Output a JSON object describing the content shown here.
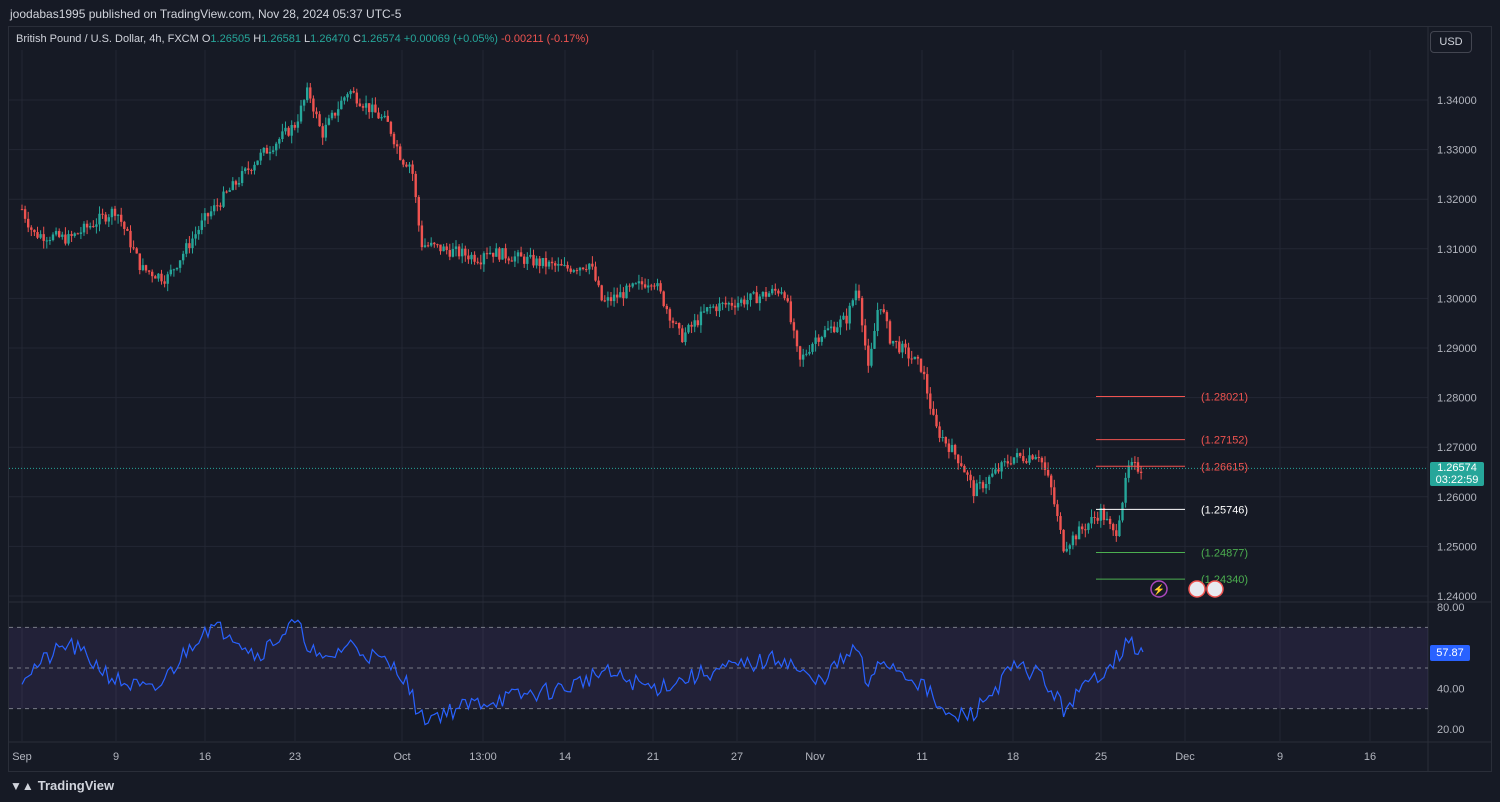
{
  "header": {
    "publisher": "joodabas1995 published on TradingView.com, Nov 28, 2024 05:37 UTC-5"
  },
  "legend": {
    "symbol": "British Pound / U.S. Dollar, 4h, FXCM",
    "o_label": "O",
    "o": "1.26505",
    "h_label": "H",
    "h": "1.26581",
    "l_label": "L",
    "l": "1.26470",
    "c_label": "C",
    "c": "1.26574",
    "change": "+0.00069 (+0.05%)",
    "change2": "-0.00211 (-0.17%)"
  },
  "currency_button": "USD",
  "last_price": {
    "value": "1.26574",
    "countdown": "03:22:59",
    "color": "#26a69a"
  },
  "rsi_value": "57.87",
  "footer": {
    "brand": "TradingView"
  },
  "colors": {
    "up": "#26a69a",
    "down": "#ef5350",
    "rsi": "#2962ff",
    "background": "#161a25"
  },
  "chart_data": [
    {
      "type": "candlestick",
      "title": "",
      "y_axis_ticks": [
        "1.34000",
        "1.33000",
        "1.32000",
        "1.31000",
        "1.30000",
        "1.29000",
        "1.28000",
        "1.27000",
        "1.26000",
        "1.25000",
        "1.24000"
      ],
      "x_axis_ticks": [
        "Sep",
        "9",
        "16",
        "23",
        "Oct",
        "13:00",
        "14",
        "21",
        "27",
        "Nov",
        "11",
        "18",
        "25",
        "Dec",
        "9",
        "16"
      ],
      "ylim": [
        1.24,
        1.345
      ],
      "price_path": [
        [
          "Sep",
          1.318
        ],
        [
          "Sep 2",
          1.313
        ],
        [
          "Sep 5",
          1.312
        ],
        [
          "Sep 9",
          1.318
        ],
        [
          "Sep 11",
          1.306
        ],
        [
          "Sep 13",
          1.304
        ],
        [
          "Sep 16",
          1.316
        ],
        [
          "Sep 18",
          1.322
        ],
        [
          "Sep 20",
          1.328
        ],
        [
          "Sep 23",
          1.335
        ],
        [
          "Sep 24",
          1.342
        ],
        [
          "Sep 25",
          1.333
        ],
        [
          "Sep 27",
          1.342
        ],
        [
          "Sep 30",
          1.335
        ],
        [
          "Oct 1",
          1.328
        ],
        [
          "Oct 2",
          1.327
        ],
        [
          "Oct 3",
          1.311
        ],
        [
          "13:00",
          1.308
        ],
        [
          "Oct 9",
          1.31
        ],
        [
          "Oct 14",
          1.306
        ],
        [
          "Oct 16",
          1.307
        ],
        [
          "Oct 17",
          1.299
        ],
        [
          "Oct 21",
          1.304
        ],
        [
          "Oct 23",
          1.292
        ],
        [
          "Oct 25",
          1.298
        ],
        [
          "Oct 28",
          1.3
        ],
        [
          "Oct 30",
          1.302
        ],
        [
          "Oct 31",
          1.287
        ],
        [
          "Nov 1",
          1.292
        ],
        [
          "Nov 4",
          1.296
        ],
        [
          "Nov 5",
          1.303
        ],
        [
          "Nov 6",
          1.285
        ],
        [
          "Nov 7",
          1.3
        ],
        [
          "Nov 8",
          1.292
        ],
        [
          "Nov 11",
          1.286
        ],
        [
          "Nov 12",
          1.274
        ],
        [
          "Nov 14",
          1.267
        ],
        [
          "Nov 15",
          1.261
        ],
        [
          "Nov 18",
          1.268
        ],
        [
          "Nov 19",
          1.268
        ],
        [
          "Nov 20",
          1.269
        ],
        [
          "Nov 21",
          1.262
        ],
        [
          "Nov 22",
          1.25
        ],
        [
          "Nov 25",
          1.257
        ],
        [
          "Nov 26",
          1.252
        ],
        [
          "Nov 27",
          1.266
        ],
        [
          "Nov 28",
          1.26574
        ]
      ],
      "levels": [
        {
          "label": "(1.28021)",
          "value": 1.28021,
          "color": "#ef5350"
        },
        {
          "label": "(1.27152)",
          "value": 1.27152,
          "color": "#ef5350"
        },
        {
          "label": "(1.26615)",
          "value": 1.26615,
          "color": "#ef5350"
        },
        {
          "label": "(1.25746)",
          "value": 1.25746,
          "color": "#ffffff"
        },
        {
          "label": "(1.24877)",
          "value": 1.24877,
          "color": "#4caf50"
        },
        {
          "label": "(1.24340)",
          "value": 1.2434,
          "color": "#4caf50"
        }
      ]
    },
    {
      "type": "line",
      "title": "",
      "series_color": "#2962ff",
      "y_axis_ticks": [
        "80.00",
        "40.00",
        "20.00"
      ],
      "ylim": [
        20,
        80
      ],
      "bands": [
        70,
        50,
        30
      ],
      "rsi_path": [
        [
          "Sep",
          46
        ],
        [
          "Sep 5",
          62
        ],
        [
          "Sep 9",
          44
        ],
        [
          "Sep 12",
          38
        ],
        [
          "Sep 16",
          70
        ],
        [
          "Sep 18",
          68
        ],
        [
          "Sep 20",
          56
        ],
        [
          "Sep 23",
          72
        ],
        [
          "Sep 25",
          52
        ],
        [
          "Sep 27",
          62
        ],
        [
          "Oct 1",
          48
        ],
        [
          "Oct 3",
          25
        ],
        [
          "Oct 9",
          33
        ],
        [
          "Oct 14",
          40
        ],
        [
          "Oct 17",
          48
        ],
        [
          "Oct 21",
          40
        ],
        [
          "Oct 25",
          48
        ],
        [
          "Oct 30",
          55
        ],
        [
          "Nov 1",
          42
        ],
        [
          "Nov 5",
          60
        ],
        [
          "Nov 6",
          38
        ],
        [
          "Nov 7",
          55
        ],
        [
          "Nov 11",
          42
        ],
        [
          "Nov 13",
          25
        ],
        [
          "Nov 15",
          28
        ],
        [
          "Nov 18",
          50
        ],
        [
          "Nov 20",
          48
        ],
        [
          "Nov 22",
          30
        ],
        [
          "Nov 25",
          48
        ],
        [
          "Nov 27",
          62
        ],
        [
          "Nov 28",
          57.87
        ]
      ]
    }
  ]
}
